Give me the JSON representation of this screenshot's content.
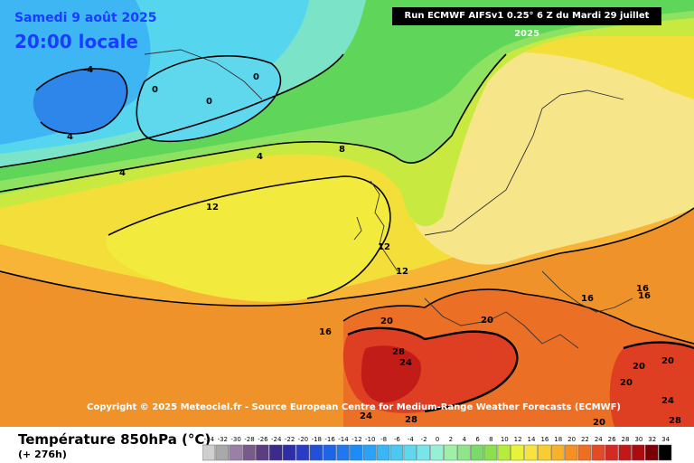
{
  "header": {
    "date": "Samedi 9 août 2025",
    "local_time": "20:00 locale",
    "run_info": "Run ECMWF AIFSv1 0.25° 6 Z du Mardi 29 juillet 2025"
  },
  "copyright": "Copyright © 2025 Meteociel.fr - Source European Centre for Medium-Range Weather Forecasts (ECMWF)",
  "legend": {
    "title": "Température 850hPa (°C)",
    "subtitle": "(+ 276h)",
    "values": [
      -34,
      -32,
      -30,
      -28,
      -26,
      -24,
      -22,
      -20,
      -18,
      -16,
      -14,
      -12,
      -10,
      -8,
      -6,
      -4,
      -2,
      0,
      2,
      4,
      6,
      8,
      10,
      12,
      14,
      16,
      18,
      20,
      22,
      24,
      26,
      28,
      30,
      32,
      34
    ],
    "colors": [
      "#cfcfcf",
      "#a9a9a9",
      "#9a7fa6",
      "#7a5a8c",
      "#5b3d80",
      "#3c2a8c",
      "#2e2ea8",
      "#2a3cc4",
      "#2151d8",
      "#1e64e6",
      "#1e78f0",
      "#1e8cf5",
      "#2aa2f7",
      "#3ab6f5",
      "#4dc8f0",
      "#60d8ec",
      "#78e6e8",
      "#96f0d6",
      "#9ef0a8",
      "#8ee68a",
      "#7ada6a",
      "#8ce050",
      "#b8ec3c",
      "#e8f23a",
      "#f6e43c",
      "#f8cc32",
      "#f8b22a",
      "#f49024",
      "#ee6e22",
      "#e44a24",
      "#d42a24",
      "#c41818",
      "#aa0c10",
      "#7a0006",
      "#000000"
    ]
  },
  "contour_labels": [
    "-4",
    "0",
    "0",
    "0",
    "4",
    "4",
    "4",
    "8",
    "12",
    "12",
    "12",
    "16",
    "16",
    "16",
    "20",
    "20",
    "20",
    "20",
    "20",
    "24",
    "24",
    "24",
    "28",
    "28",
    "28",
    "16",
    "20"
  ],
  "colors": {
    "deep_cold": "#2f7fe6",
    "cold": "#4fb9f4",
    "cool": "#66dde6",
    "mild": "#7ee07c",
    "lime": "#c4ea3e",
    "yellow": "#f2ea3c",
    "pale": "#f7e07a",
    "warm": "#f5a82c",
    "hot": "#ec6a2a",
    "very_hot": "#d62e26"
  }
}
